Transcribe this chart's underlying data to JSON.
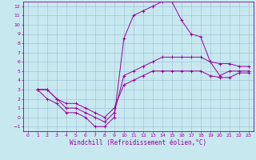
{
  "xlabel": "Windchill (Refroidissement éolien,°C)",
  "bg_color": "#c8e8f0",
  "grid_color": "#a0c8d8",
  "line_color": "#990099",
  "spine_color": "#880088",
  "xlim": [
    -0.5,
    23.5
  ],
  "ylim": [
    -1.5,
    12.5
  ],
  "xticks": [
    0,
    1,
    2,
    3,
    4,
    5,
    6,
    7,
    8,
    9,
    10,
    11,
    12,
    13,
    14,
    15,
    16,
    17,
    18,
    19,
    20,
    21,
    22,
    23
  ],
  "yticks": [
    -1,
    0,
    1,
    2,
    3,
    4,
    5,
    6,
    7,
    8,
    9,
    10,
    11,
    12
  ],
  "line_big_x": [
    1,
    2,
    3,
    4,
    5,
    6,
    7,
    8,
    9,
    10,
    11,
    12,
    13,
    14,
    15,
    16,
    17,
    18,
    19,
    20,
    21,
    22,
    23
  ],
  "line_big_y": [
    3.0,
    2.0,
    1.5,
    0.5,
    0.5,
    0.0,
    -1.0,
    -1.0,
    0.0,
    8.5,
    11.0,
    11.5,
    12.0,
    12.5,
    12.5,
    10.5,
    9.0,
    8.7,
    6.0,
    4.5,
    5.0,
    5.0,
    5.0
  ],
  "line_mid_x": [
    1,
    2,
    3,
    4,
    5,
    6,
    7,
    8,
    9,
    10,
    11,
    12,
    13,
    14,
    15,
    16,
    17,
    18,
    19,
    20,
    21,
    22,
    23
  ],
  "line_mid_y": [
    3.0,
    3.0,
    2.0,
    1.0,
    1.0,
    0.5,
    0.0,
    -0.5,
    0.5,
    4.5,
    5.0,
    5.5,
    6.0,
    6.5,
    6.5,
    6.5,
    6.5,
    6.5,
    6.0,
    5.8,
    5.8,
    5.5,
    5.5
  ],
  "line_low_x": [
    1,
    2,
    3,
    4,
    5,
    6,
    7,
    8,
    9,
    10,
    11,
    12,
    13,
    14,
    15,
    16,
    17,
    18,
    19,
    20,
    21,
    22,
    23
  ],
  "line_low_y": [
    3.0,
    3.0,
    2.0,
    1.5,
    1.5,
    1.0,
    0.5,
    0.0,
    1.0,
    3.5,
    4.0,
    4.5,
    5.0,
    5.0,
    5.0,
    5.0,
    5.0,
    5.0,
    4.5,
    4.3,
    4.3,
    4.8,
    4.8
  ],
  "marker_size": 2.5,
  "linewidth": 0.7,
  "tick_fontsize": 4.5,
  "label_fontsize": 5.5
}
